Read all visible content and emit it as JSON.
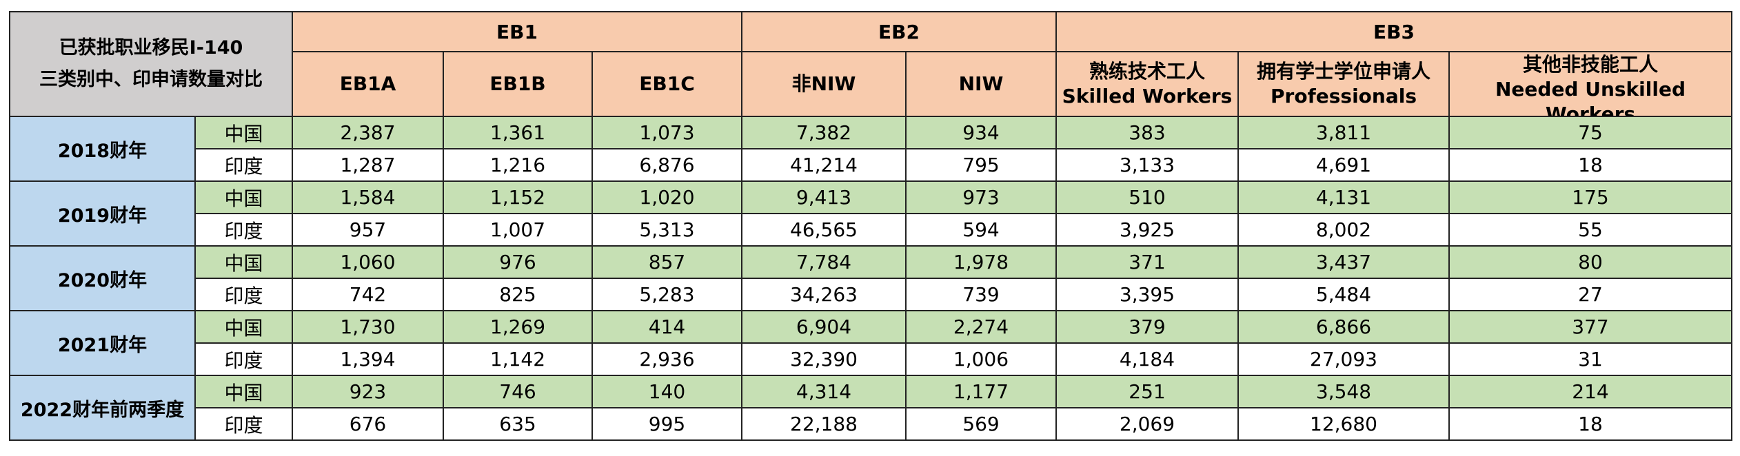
{
  "title_lines": [
    "已获批职业移民I-140",
    "三类别中、印申请数量对比"
  ],
  "groups": [
    "EB1",
    "EB2",
    "EB3"
  ],
  "columns": [
    [
      "EB1A"
    ],
    [
      "EB1B"
    ],
    [
      "EB1C"
    ],
    [
      "非NIW"
    ],
    [
      "NIW"
    ],
    [
      "熟练技术工人",
      "Skilled Workers"
    ],
    [
      "拥有学士学位申请人",
      "Professionals"
    ],
    [
      "其他非技能工人",
      "Needed Unskilled Workers"
    ]
  ],
  "colors": {
    "header_gray": "#d0cece",
    "header_orange": "#f8cbad",
    "year_blue": "#bdd7ee",
    "china_green": "#c6e0b4"
  },
  "rows": [
    {
      "year": "2018财年",
      "china": {
        "label": "中国",
        "values": [
          "2,387",
          "1,361",
          "1,073",
          "7,382",
          "934",
          "383",
          "3,811",
          "75"
        ]
      },
      "india": {
        "label": "印度",
        "values": [
          "1,287",
          "1,216",
          "6,876",
          "41,214",
          "795",
          "3,133",
          "4,691",
          "18"
        ]
      }
    },
    {
      "year": "2019财年",
      "china": {
        "label": "中国",
        "values": [
          "1,584",
          "1,152",
          "1,020",
          "9,413",
          "973",
          "510",
          "4,131",
          "175"
        ]
      },
      "india": {
        "label": "印度",
        "values": [
          "957",
          "1,007",
          "5,313",
          "46,565",
          "594",
          "3,925",
          "8,002",
          "55"
        ]
      }
    },
    {
      "year": "2020财年",
      "china": {
        "label": "中国",
        "values": [
          "1,060",
          "976",
          "857",
          "7,784",
          "1,978",
          "371",
          "3,437",
          "80"
        ]
      },
      "india": {
        "label": "印度",
        "values": [
          "742",
          "825",
          "5,283",
          "34,263",
          "739",
          "3,395",
          "5,484",
          "27"
        ]
      }
    },
    {
      "year": "2021财年",
      "china": {
        "label": "中国",
        "values": [
          "1,730",
          "1,269",
          "414",
          "6,904",
          "2,274",
          "379",
          "6,866",
          "377"
        ]
      },
      "india": {
        "label": "印度",
        "values": [
          "1,394",
          "1,142",
          "2,936",
          "32,390",
          "1,006",
          "4,184",
          "27,093",
          "31"
        ]
      }
    },
    {
      "year": "2022财年前两季度",
      "china": {
        "label": "中国",
        "values": [
          "923",
          "746",
          "140",
          "4,314",
          "1,177",
          "251",
          "3,548",
          "214"
        ]
      },
      "india": {
        "label": "印度",
        "values": [
          "676",
          "635",
          "995",
          "22,188",
          "569",
          "2,069",
          "12,680",
          "18"
        ]
      }
    }
  ]
}
